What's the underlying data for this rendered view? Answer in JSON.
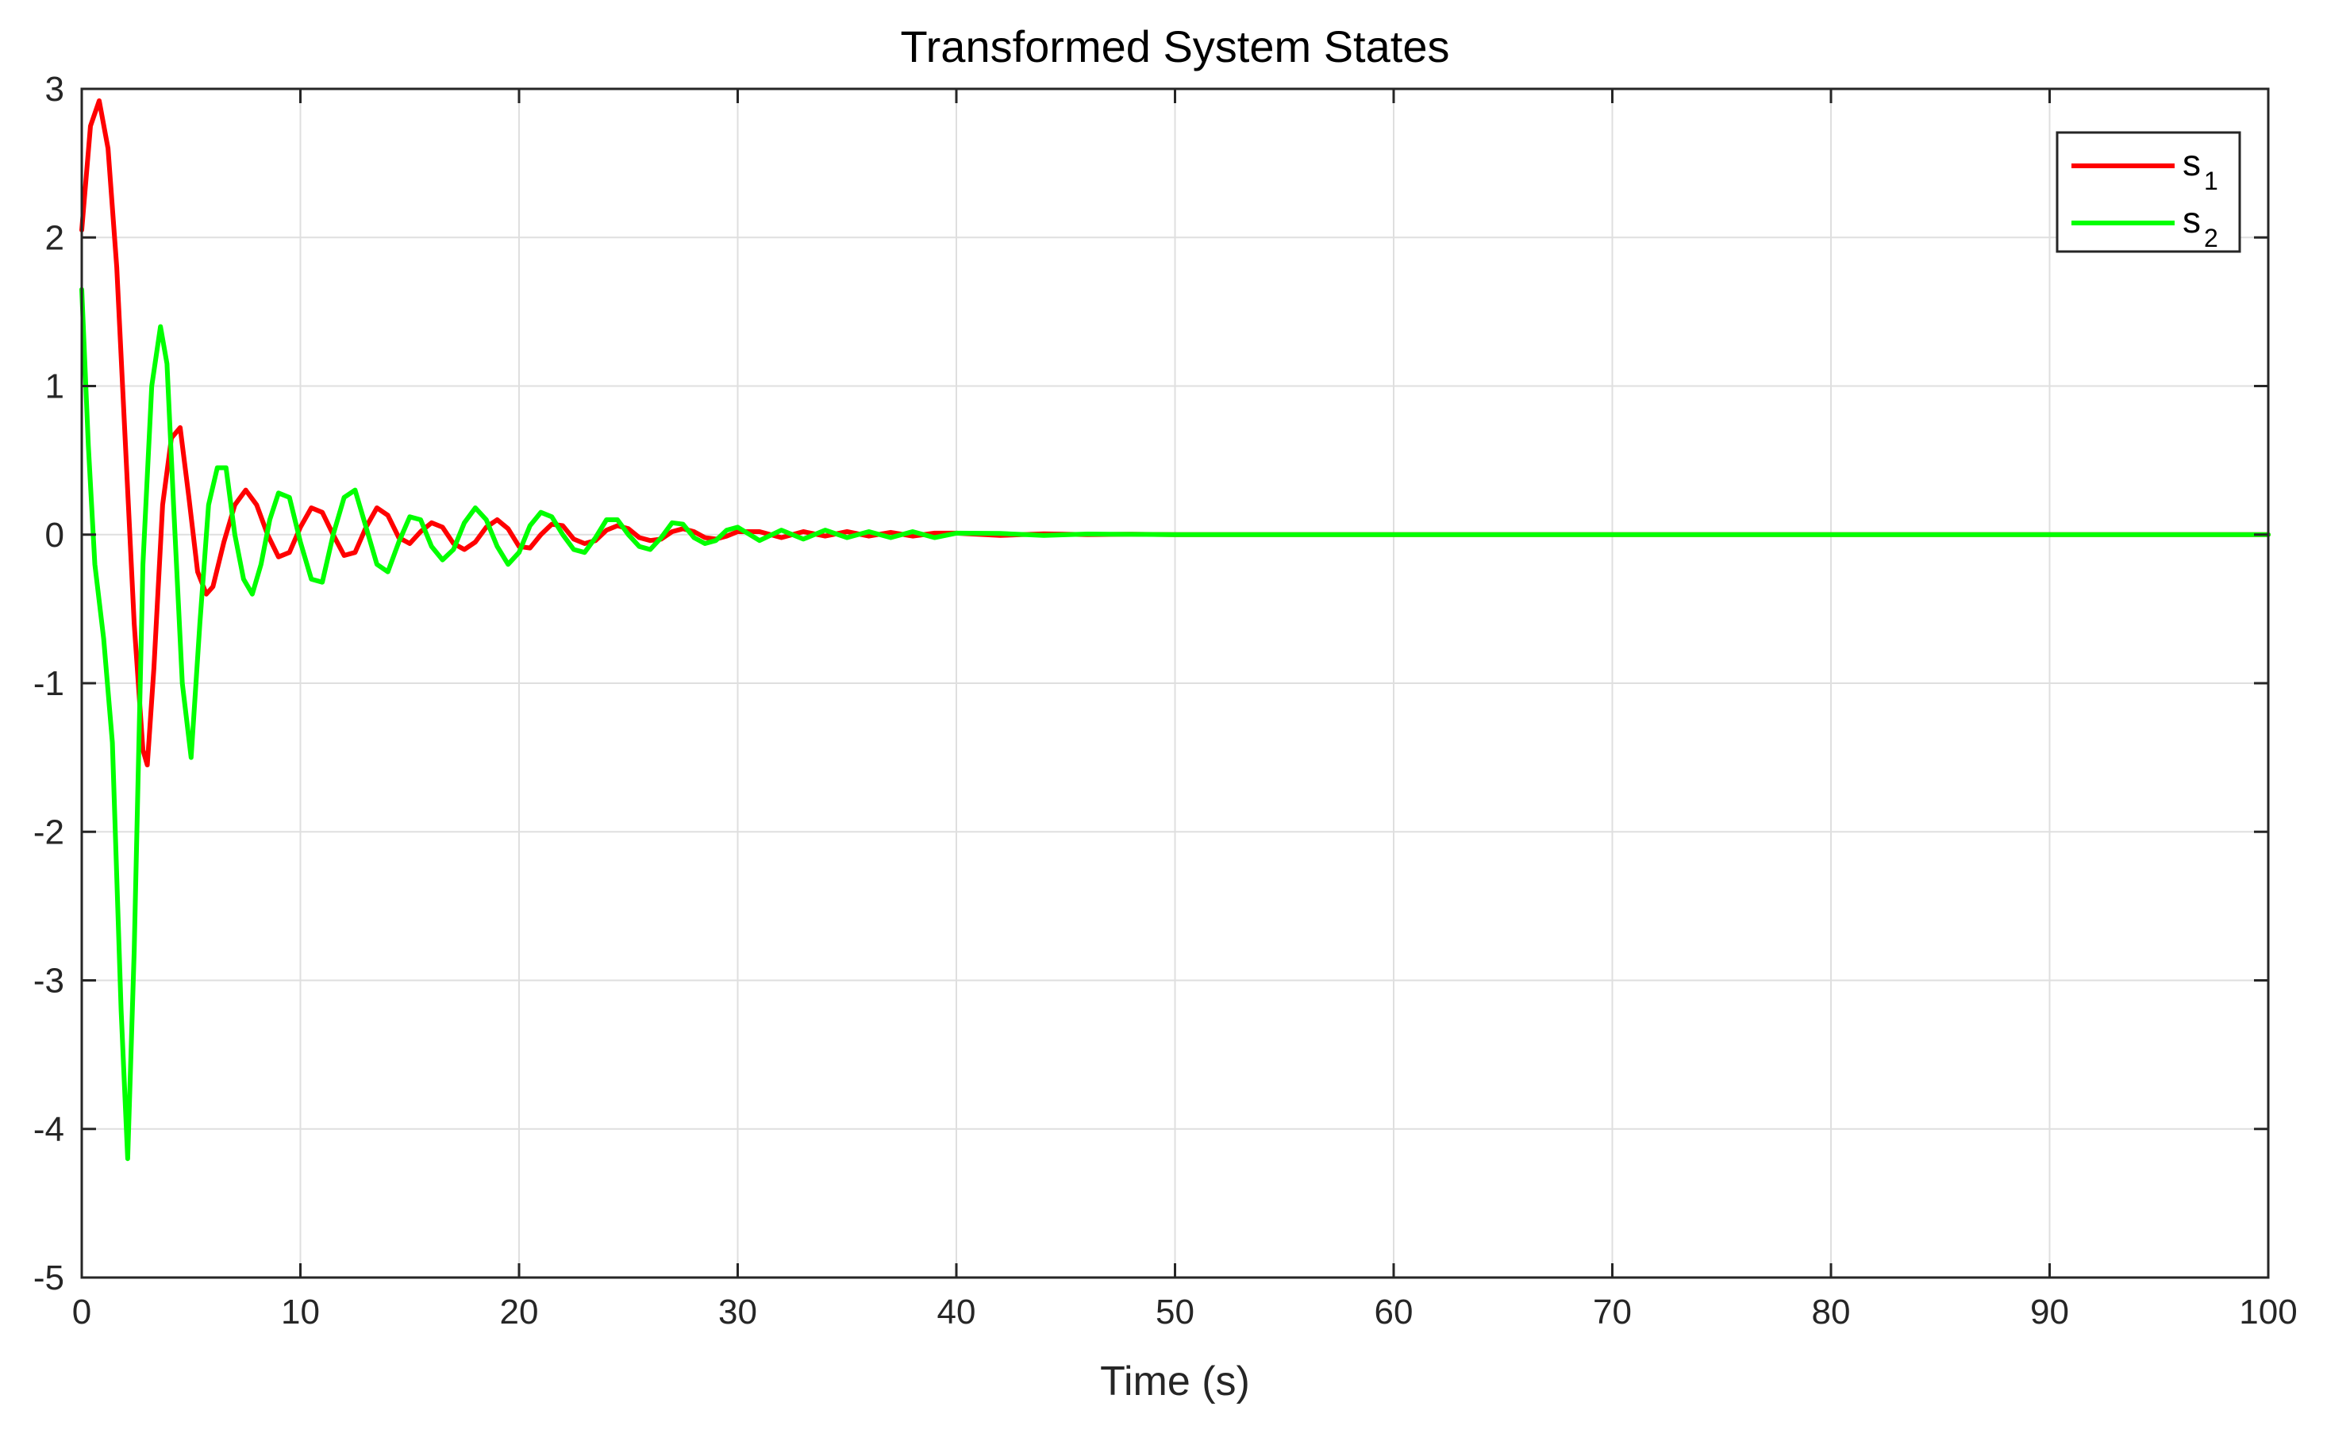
{
  "chart_data": {
    "type": "line",
    "title": "Transformed System States",
    "xlabel": "Time (s)",
    "ylabel": "",
    "xlim": [
      0,
      100
    ],
    "ylim": [
      -5,
      3
    ],
    "xticks": [
      0,
      10,
      20,
      30,
      40,
      50,
      60,
      70,
      80,
      90,
      100
    ],
    "yticks": [
      -5,
      -4,
      -3,
      -2,
      -1,
      0,
      1,
      2,
      3
    ],
    "xtick_labels": [
      "0",
      "10",
      "20",
      "30",
      "40",
      "50",
      "60",
      "70",
      "80",
      "90",
      "100"
    ],
    "ytick_labels": [
      "-5",
      "-4",
      "-3",
      "-2",
      "-1",
      "0",
      "1",
      "2",
      "3"
    ],
    "grid": true,
    "legend_position": "top-right",
    "series": [
      {
        "name": "s",
        "subscript": "1",
        "color": "#ff0000",
        "x": [
          0,
          0.4,
          0.8,
          1.2,
          1.6,
          2.0,
          2.4,
          2.8,
          3.0,
          3.3,
          3.7,
          4.1,
          4.5,
          4.9,
          5.3,
          5.7,
          6.0,
          6.5,
          7.0,
          7.5,
          8.0,
          8.5,
          9.0,
          9.5,
          10.0,
          10.5,
          11.0,
          11.5,
          12.0,
          12.5,
          13.0,
          13.5,
          14.0,
          14.5,
          15.0,
          15.5,
          16.0,
          16.5,
          17.0,
          17.5,
          18.0,
          18.5,
          19.0,
          19.5,
          20.0,
          20.5,
          21.0,
          21.5,
          22.0,
          22.5,
          23.0,
          23.5,
          24.0,
          24.5,
          25.0,
          25.5,
          26.0,
          26.5,
          27.0,
          27.5,
          28.0,
          28.5,
          29.0,
          29.5,
          30.0,
          31.0,
          32.0,
          33.0,
          34.0,
          35.0,
          36.0,
          37.0,
          38.0,
          39.0,
          40.0,
          42.0,
          44.0,
          46.0,
          48.0,
          50.0,
          55.0,
          60.0,
          70.0,
          80.0,
          90.0,
          100.0
        ],
        "y": [
          2.05,
          2.75,
          2.92,
          2.6,
          1.8,
          0.6,
          -0.6,
          -1.45,
          -1.55,
          -0.9,
          0.2,
          0.65,
          0.72,
          0.25,
          -0.25,
          -0.4,
          -0.35,
          -0.05,
          0.2,
          0.3,
          0.2,
          0.0,
          -0.15,
          -0.12,
          0.05,
          0.18,
          0.15,
          0.0,
          -0.14,
          -0.12,
          0.05,
          0.18,
          0.13,
          -0.02,
          -0.06,
          0.02,
          0.08,
          0.05,
          -0.06,
          -0.1,
          -0.05,
          0.05,
          0.1,
          0.04,
          -0.08,
          -0.09,
          0.0,
          0.07,
          0.06,
          -0.03,
          -0.06,
          -0.04,
          0.03,
          0.06,
          0.04,
          -0.02,
          -0.04,
          -0.03,
          0.02,
          0.04,
          0.02,
          -0.02,
          -0.03,
          -0.01,
          0.02,
          0.02,
          -0.02,
          0.02,
          -0.01,
          0.02,
          -0.01,
          0.015,
          -0.01,
          0.01,
          0.01,
          -0.005,
          0.005,
          0.0,
          0.003,
          0.0,
          0.0,
          0.0,
          0.0,
          0.0,
          0.0,
          0.0
        ]
      },
      {
        "name": "s",
        "subscript": "2",
        "color": "#00ff00",
        "x": [
          0,
          0.3,
          0.6,
          1.0,
          1.4,
          1.8,
          2.1,
          2.4,
          2.8,
          3.2,
          3.6,
          3.9,
          4.2,
          4.6,
          5.0,
          5.4,
          5.8,
          6.2,
          6.6,
          7.0,
          7.4,
          7.8,
          8.2,
          8.6,
          9.0,
          9.5,
          10.0,
          10.5,
          11.0,
          11.5,
          12.0,
          12.5,
          13.0,
          13.5,
          14.0,
          14.5,
          15.0,
          15.5,
          16.0,
          16.5,
          17.0,
          17.5,
          18.0,
          18.5,
          19.0,
          19.5,
          20.0,
          20.5,
          21.0,
          21.5,
          22.0,
          22.5,
          23.0,
          23.5,
          24.0,
          24.5,
          25.0,
          25.5,
          26.0,
          26.5,
          27.0,
          27.5,
          28.0,
          28.5,
          29.0,
          29.5,
          30.0,
          31.0,
          32.0,
          33.0,
          34.0,
          35.0,
          36.0,
          37.0,
          38.0,
          39.0,
          40.0,
          42.0,
          44.0,
          46.0,
          48.0,
          50.0,
          55.0,
          60.0,
          70.0,
          80.0,
          90.0,
          100.0
        ],
        "y": [
          1.65,
          0.6,
          -0.2,
          -0.7,
          -1.4,
          -3.2,
          -4.2,
          -2.8,
          -0.2,
          1.0,
          1.4,
          1.15,
          0.2,
          -1.0,
          -1.5,
          -0.6,
          0.2,
          0.45,
          0.45,
          0.0,
          -0.3,
          -0.4,
          -0.2,
          0.1,
          0.28,
          0.25,
          -0.05,
          -0.3,
          -0.32,
          0.0,
          0.25,
          0.3,
          0.05,
          -0.2,
          -0.25,
          -0.05,
          0.12,
          0.1,
          -0.08,
          -0.17,
          -0.1,
          0.08,
          0.18,
          0.1,
          -0.08,
          -0.2,
          -0.12,
          0.06,
          0.15,
          0.12,
          0.0,
          -0.1,
          -0.12,
          -0.02,
          0.1,
          0.1,
          0.0,
          -0.08,
          -0.1,
          -0.02,
          0.08,
          0.07,
          -0.02,
          -0.06,
          -0.04,
          0.03,
          0.05,
          -0.04,
          0.03,
          -0.03,
          0.03,
          -0.02,
          0.02,
          -0.02,
          0.02,
          -0.02,
          0.01,
          0.008,
          -0.005,
          0.004,
          0.002,
          0.0,
          0.0,
          0.0,
          0.0,
          0.0,
          0.0,
          0.0
        ]
      }
    ]
  }
}
